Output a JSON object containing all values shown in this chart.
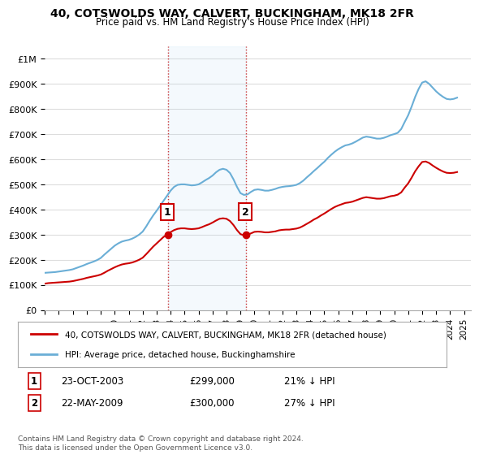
{
  "title": "40, COTSWOLDS WAY, CALVERT, BUCKINGHAM, MK18 2FR",
  "subtitle": "Price paid vs. HM Land Registry's House Price Index (HPI)",
  "xlabel": "",
  "ylabel": "",
  "ylim": [
    0,
    1050000
  ],
  "yticks": [
    0,
    100000,
    200000,
    300000,
    400000,
    500000,
    600000,
    700000,
    800000,
    900000,
    1000000
  ],
  "ytick_labels": [
    "£0",
    "£100K",
    "£200K",
    "£300K",
    "£400K",
    "£500K",
    "£600K",
    "£700K",
    "£800K",
    "£900K",
    "£1M"
  ],
  "xlim_start": 1995.0,
  "xlim_end": 2025.5,
  "hpi_color": "#6aaed6",
  "price_color": "#cc0000",
  "annotation_color": "#cc0000",
  "vline_color": "#cc3333",
  "vline_style": ":",
  "background_color": "#ffffff",
  "grid_color": "#dddddd",
  "purchase1_x": 2003.81,
  "purchase1_y": 299000,
  "purchase1_label": "1",
  "purchase2_x": 2009.39,
  "purchase2_y": 300000,
  "purchase2_label": "2",
  "legend_line1": "40, COTSWOLDS WAY, CALVERT, BUCKINGHAM, MK18 2FR (detached house)",
  "legend_line2": "HPI: Average price, detached house, Buckinghamshire",
  "table_row1": "1    23-OCT-2003    £299,000    21% ↓ HPI",
  "table_row2": "2    22-MAY-2009    £300,000    27% ↓ HPI",
  "footer": "Contains HM Land Registry data © Crown copyright and database right 2024.\nThis data is licensed under the Open Government Licence v3.0.",
  "hpi_data_x": [
    1995.0,
    1995.25,
    1995.5,
    1995.75,
    1996.0,
    1996.25,
    1996.5,
    1996.75,
    1997.0,
    1997.25,
    1997.5,
    1997.75,
    1998.0,
    1998.25,
    1998.5,
    1998.75,
    1999.0,
    1999.25,
    1999.5,
    1999.75,
    2000.0,
    2000.25,
    2000.5,
    2000.75,
    2001.0,
    2001.25,
    2001.5,
    2001.75,
    2002.0,
    2002.25,
    2002.5,
    2002.75,
    2003.0,
    2003.25,
    2003.5,
    2003.75,
    2004.0,
    2004.25,
    2004.5,
    2004.75,
    2005.0,
    2005.25,
    2005.5,
    2005.75,
    2006.0,
    2006.25,
    2006.5,
    2006.75,
    2007.0,
    2007.25,
    2007.5,
    2007.75,
    2008.0,
    2008.25,
    2008.5,
    2008.75,
    2009.0,
    2009.25,
    2009.5,
    2009.75,
    2010.0,
    2010.25,
    2010.5,
    2010.75,
    2011.0,
    2011.25,
    2011.5,
    2011.75,
    2012.0,
    2012.25,
    2012.5,
    2012.75,
    2013.0,
    2013.25,
    2013.5,
    2013.75,
    2014.0,
    2014.25,
    2014.5,
    2014.75,
    2015.0,
    2015.25,
    2015.5,
    2015.75,
    2016.0,
    2016.25,
    2016.5,
    2016.75,
    2017.0,
    2017.25,
    2017.5,
    2017.75,
    2018.0,
    2018.25,
    2018.5,
    2018.75,
    2019.0,
    2019.25,
    2019.5,
    2019.75,
    2020.0,
    2020.25,
    2020.5,
    2020.75,
    2021.0,
    2021.25,
    2021.5,
    2021.75,
    2022.0,
    2022.25,
    2022.5,
    2022.75,
    2023.0,
    2023.25,
    2023.5,
    2023.75,
    2024.0,
    2024.25,
    2024.5
  ],
  "hpi_data_y": [
    148000,
    149000,
    150000,
    151000,
    153000,
    155000,
    157000,
    159000,
    162000,
    167000,
    172000,
    177000,
    183000,
    188000,
    193000,
    199000,
    207000,
    220000,
    232000,
    244000,
    256000,
    265000,
    272000,
    276000,
    279000,
    284000,
    291000,
    300000,
    312000,
    332000,
    355000,
    376000,
    395000,
    415000,
    435000,
    455000,
    475000,
    490000,
    498000,
    500000,
    500000,
    498000,
    496000,
    497000,
    500000,
    508000,
    517000,
    525000,
    535000,
    548000,
    558000,
    562000,
    558000,
    545000,
    520000,
    490000,
    465000,
    458000,
    460000,
    470000,
    478000,
    480000,
    478000,
    475000,
    475000,
    478000,
    482000,
    487000,
    490000,
    492000,
    493000,
    495000,
    498000,
    505000,
    515000,
    528000,
    540000,
    553000,
    565000,
    578000,
    590000,
    605000,
    618000,
    630000,
    640000,
    648000,
    655000,
    658000,
    663000,
    670000,
    678000,
    686000,
    690000,
    688000,
    685000,
    682000,
    682000,
    685000,
    690000,
    696000,
    700000,
    705000,
    720000,
    748000,
    775000,
    810000,
    848000,
    880000,
    905000,
    910000,
    900000,
    885000,
    870000,
    858000,
    848000,
    840000,
    838000,
    840000,
    845000
  ],
  "price_data_x": [
    1995.0,
    1995.25,
    1995.5,
    1995.75,
    1996.0,
    1996.25,
    1996.5,
    1996.75,
    1997.0,
    1997.25,
    1997.5,
    1997.75,
    1998.0,
    1998.25,
    1998.5,
    1998.75,
    1999.0,
    1999.25,
    1999.5,
    1999.75,
    2000.0,
    2000.25,
    2000.5,
    2000.75,
    2001.0,
    2001.25,
    2001.5,
    2001.75,
    2002.0,
    2002.25,
    2002.5,
    2002.75,
    2003.0,
    2003.25,
    2003.5,
    2003.75,
    2004.0,
    2004.25,
    2004.5,
    2004.75,
    2005.0,
    2005.25,
    2005.5,
    2005.75,
    2006.0,
    2006.25,
    2006.5,
    2006.75,
    2007.0,
    2007.25,
    2007.5,
    2007.75,
    2008.0,
    2008.25,
    2008.5,
    2008.75,
    2009.0,
    2009.25,
    2009.5,
    2009.75,
    2010.0,
    2010.25,
    2010.5,
    2010.75,
    2011.0,
    2011.25,
    2011.5,
    2011.75,
    2012.0,
    2012.25,
    2012.5,
    2012.75,
    2013.0,
    2013.25,
    2013.5,
    2013.75,
    2014.0,
    2014.25,
    2014.5,
    2014.75,
    2015.0,
    2015.25,
    2015.5,
    2015.75,
    2016.0,
    2016.25,
    2016.5,
    2016.75,
    2017.0,
    2017.25,
    2017.5,
    2017.75,
    2018.0,
    2018.25,
    2018.5,
    2018.75,
    2019.0,
    2019.25,
    2019.5,
    2019.75,
    2020.0,
    2020.25,
    2020.5,
    2020.75,
    2021.0,
    2021.25,
    2021.5,
    2021.75,
    2022.0,
    2022.25,
    2022.5,
    2022.75,
    2023.0,
    2023.25,
    2023.5,
    2023.75,
    2024.0,
    2024.25,
    2024.5
  ],
  "price_data_y": [
    105000,
    107000,
    108000,
    109000,
    110000,
    111000,
    112000,
    113000,
    115000,
    118000,
    121000,
    124000,
    128000,
    131000,
    134000,
    137000,
    141000,
    148000,
    156000,
    163000,
    170000,
    176000,
    181000,
    184000,
    186000,
    189000,
    194000,
    200000,
    208000,
    222000,
    237000,
    252000,
    265000,
    278000,
    291000,
    299000,
    310000,
    318000,
    323000,
    325000,
    325000,
    323000,
    322000,
    323000,
    325000,
    330000,
    336000,
    341000,
    348000,
    356000,
    363000,
    365000,
    363000,
    354000,
    338000,
    318000,
    302000,
    297000,
    299000,
    305000,
    311000,
    312000,
    311000,
    309000,
    309000,
    311000,
    313000,
    317000,
    319000,
    320000,
    320000,
    322000,
    324000,
    328000,
    335000,
    343000,
    351000,
    360000,
    367000,
    376000,
    384000,
    393000,
    402000,
    410000,
    416000,
    421000,
    426000,
    428000,
    431000,
    436000,
    441000,
    446000,
    449000,
    447000,
    445000,
    443000,
    443000,
    445000,
    449000,
    453000,
    455000,
    459000,
    468000,
    487000,
    504000,
    527000,
    552000,
    572000,
    589000,
    591000,
    585000,
    575000,
    566000,
    558000,
    551000,
    546000,
    545000,
    546000,
    549000
  ]
}
